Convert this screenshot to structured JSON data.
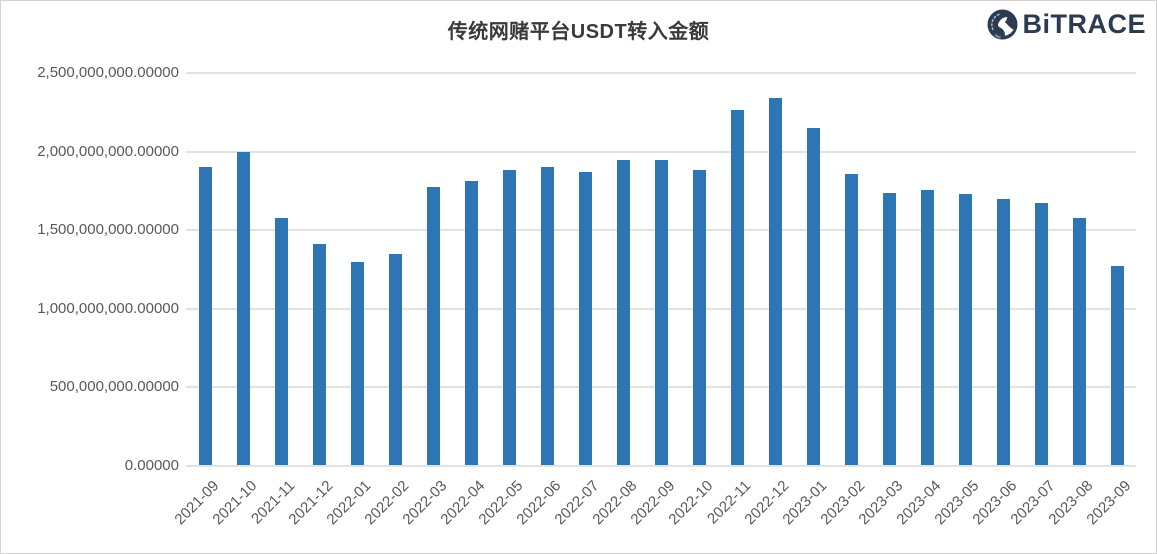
{
  "header": {
    "title": "传统网赌平台USDT转入金额",
    "brand": "BiTRACE"
  },
  "chart_data": {
    "type": "bar",
    "title": "传统网赌平台USDT转入金额",
    "categories": [
      "2021-09",
      "2021-10",
      "2021-11",
      "2021-12",
      "2022-01",
      "2022-02",
      "2022-03",
      "2022-04",
      "2022-05",
      "2022-06",
      "2022-07",
      "2022-08",
      "2022-09",
      "2022-10",
      "2022-11",
      "2022-12",
      "2023-01",
      "2023-02",
      "2023-03",
      "2023-04",
      "2023-05",
      "2023-06",
      "2023-07",
      "2023-08",
      "2023-09"
    ],
    "values": [
      1900000000,
      2000000000,
      1575000000,
      1415000000,
      1300000000,
      1350000000,
      1775000000,
      1815000000,
      1880000000,
      1905000000,
      1870000000,
      1945000000,
      1945000000,
      1885000000,
      2265000000,
      2340000000,
      2150000000,
      1855000000,
      1735000000,
      1755000000,
      1730000000,
      1700000000,
      1675000000,
      1580000000,
      1270000000
    ],
    "xlabel": "",
    "ylabel": "",
    "ylim": [
      0,
      2500000000
    ],
    "ytick_values": [
      0,
      500000000,
      1000000000,
      1500000000,
      2000000000,
      2500000000
    ],
    "ytick_labels": [
      "0.00000",
      "500,000,000.00000",
      "1,000,000,000.00000",
      "1,500,000,000.00000",
      "2,000,000,000.00000",
      "2,500,000,000.00000"
    ],
    "bar_color": "#2E75B6",
    "grid": true,
    "legend_position": "none"
  },
  "colors": {
    "bar": "#2E75B6",
    "gridline": "#e0e0e0",
    "axis_label": "#595959",
    "title": "#3a3a3a",
    "brand_navy": "#2b3c52",
    "background": "#ffffff",
    "border": "#d3d3d3"
  }
}
